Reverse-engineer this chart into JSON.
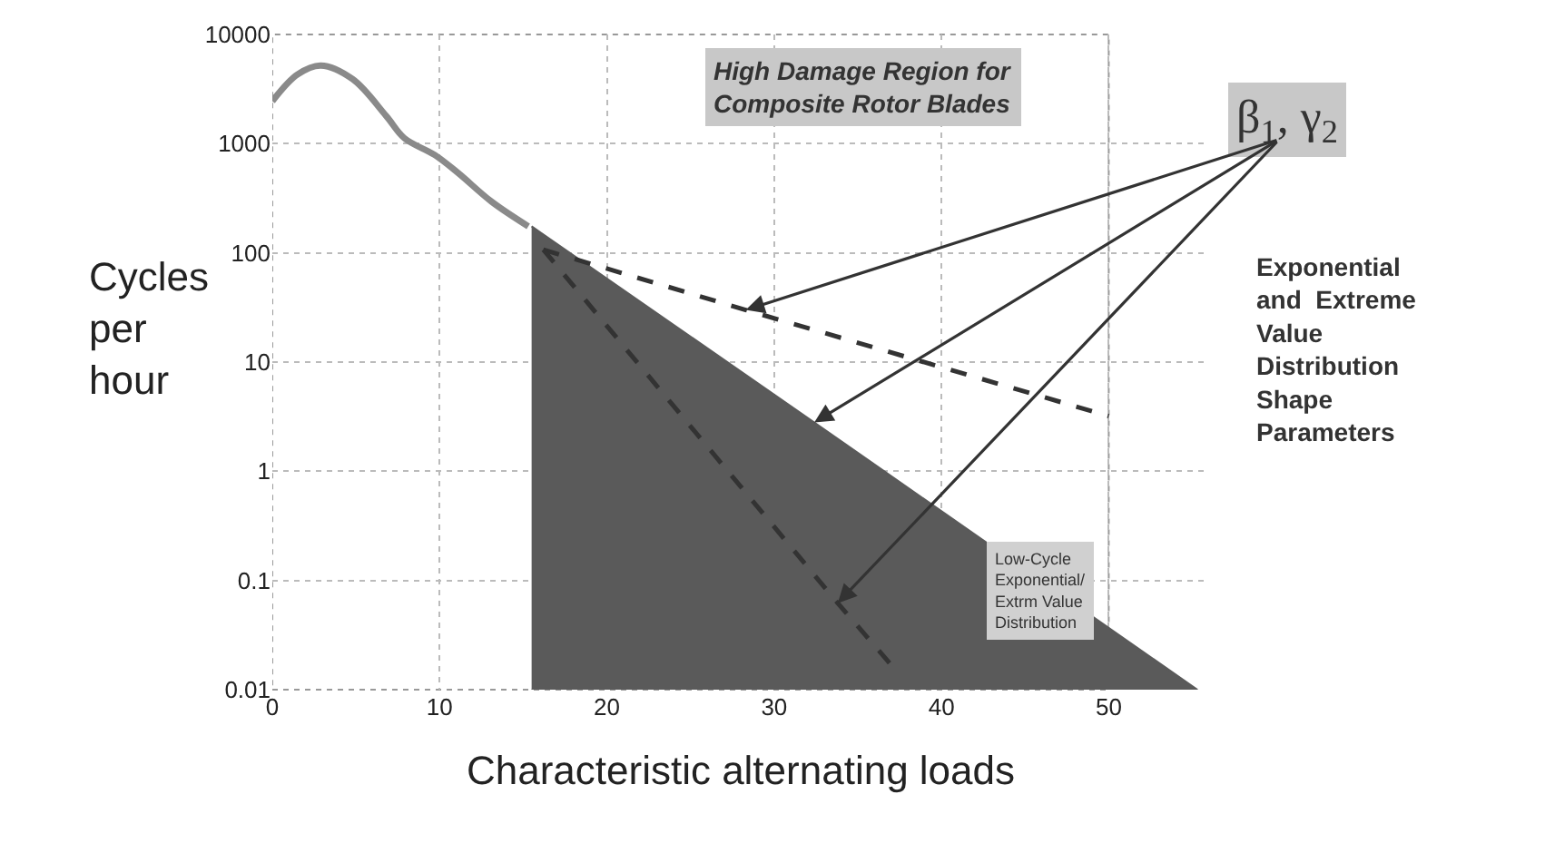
{
  "chart_data": {
    "type": "line",
    "xlabel": "Characteristic alternating loads",
    "ylabel": "Cycles per hour",
    "xlim": [
      0,
      56
    ],
    "xticks": [
      0,
      10,
      20,
      30,
      40,
      50
    ],
    "ylim": [
      0.01,
      10000
    ],
    "yticks": [
      0.01,
      0.1,
      1,
      10,
      100,
      1000,
      10000
    ],
    "log": true,
    "grid": true,
    "marker": "none",
    "series": [
      {
        "color": "#8a8a8a",
        "x": [
          0,
          1.5,
          2.9,
          4.8,
          6.8,
          7.9,
          9.7,
          11.1,
          13.1,
          15.3
        ],
        "values": [
          2450,
          4300,
          5200,
          3900,
          1800,
          1120,
          790,
          540,
          295,
          175
        ]
      },
      {
        "type": "area",
        "color": "#5a5a5a",
        "x": [
          15.5,
          32.4,
          55.3
        ],
        "values": [
          175,
          2.8,
          0.01
        ]
      },
      {
        "color": "#333333",
        "line_style": "dashed",
        "x": [
          16.2,
          28.3,
          50
        ],
        "values": [
          107,
          30,
          3.2
        ]
      },
      {
        "color": "#333333",
        "line_style": "dashed",
        "x": [
          16.2,
          33.8,
          37.2
        ],
        "values": [
          107,
          0.062,
          0.0155
        ]
      }
    ],
    "annotations": [
      "High Damage Region for\nComposite Rotor Blades",
      "β$_{1}$, γ$_{2}$",
      "Exponential\nand  Extreme\nValue\nDistribution\nShape\nParameters",
      "Low-Cycle\nExponential/\nExtrm Value\nDistribution"
    ]
  }
}
